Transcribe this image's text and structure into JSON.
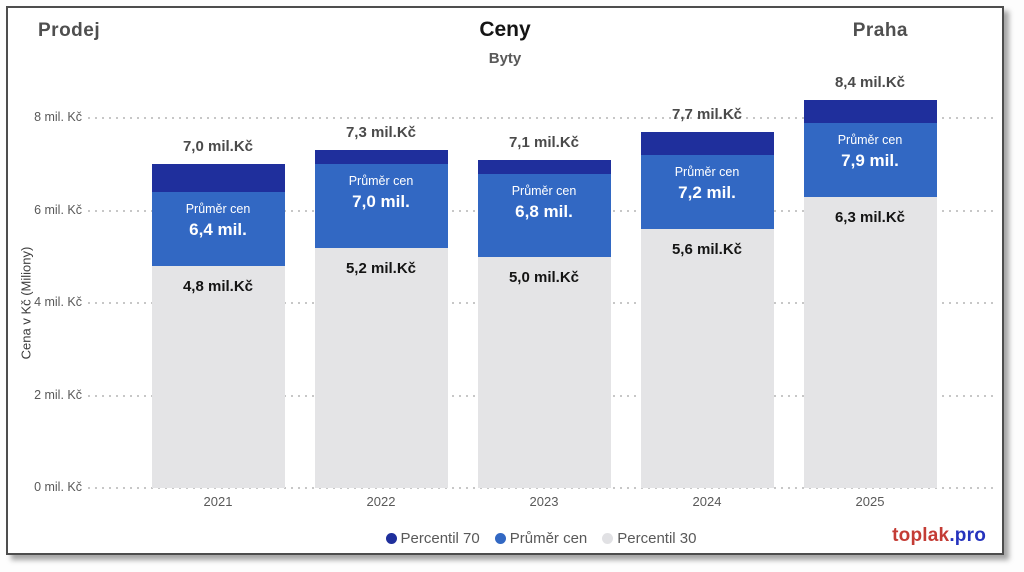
{
  "header": {
    "left_label": "Prodej",
    "title": "Ceny",
    "subtitle": "Byty",
    "right_label": "Praha"
  },
  "chart_data": {
    "type": "bar",
    "stacked": true,
    "title": "Ceny",
    "subtitle": "Byty",
    "categories": [
      "2021",
      "2022",
      "2023",
      "2024",
      "2025"
    ],
    "series": [
      {
        "name": "Percentil 30",
        "color": "#E4E4E6",
        "values": [
          4.8,
          5.2,
          5.0,
          5.6,
          6.3
        ]
      },
      {
        "name": "Průměr cen",
        "color": "#3268C3",
        "values": [
          6.4,
          7.0,
          6.8,
          7.2,
          7.9
        ]
      },
      {
        "name": "Percentil 70",
        "color": "#1F2F9C",
        "values": [
          7.0,
          7.3,
          7.1,
          7.7,
          8.4
        ]
      }
    ],
    "segment_note": "gray = 0 to Percentil 30, blue = Percentil 30 to Průměr cen, dark blue = Průměr cen to Percentil 70",
    "total_labels": [
      "7,0 mil.Kč",
      "7,3 mil.Kč",
      "7,1 mil.Kč",
      "7,7 mil.Kč",
      "8,4 mil.Kč"
    ],
    "avg_label_title": "Průměr cen",
    "avg_labels": [
      "6,4 mil.",
      "7,0 mil.",
      "6,8 mil.",
      "7,2 mil.",
      "7,9 mil."
    ],
    "p30_labels": [
      "4,8 mil.Kč",
      "5,2 mil.Kč",
      "5,0 mil.Kč",
      "5,6 mil.Kč",
      "6,3 mil.Kč"
    ],
    "ylabel": "Cena v Kč (Miliony)",
    "yticks": [
      {
        "value": 0,
        "label": "0 mil. Kč"
      },
      {
        "value": 2,
        "label": "2 mil. Kč"
      },
      {
        "value": 4,
        "label": "4 mil. Kč"
      },
      {
        "value": 6,
        "label": "6 mil. Kč"
      },
      {
        "value": 8,
        "label": "8 mil. Kč"
      }
    ],
    "ylim": [
      0,
      8
    ],
    "grid": "dotted-horizontal",
    "legend": {
      "position": "bottom-center",
      "items": [
        {
          "label": "Percentil 70",
          "color": "#1F2F9C"
        },
        {
          "label": "Průměr cen",
          "color": "#3268C3"
        },
        {
          "label": "Percentil 30",
          "color": "#E1E1E4"
        }
      ]
    }
  },
  "footer": {
    "brand_primary": "toplak",
    "brand_secondary": ".pro",
    "brand_primary_color": "#C43C35",
    "brand_secondary_color": "#2533BD"
  }
}
